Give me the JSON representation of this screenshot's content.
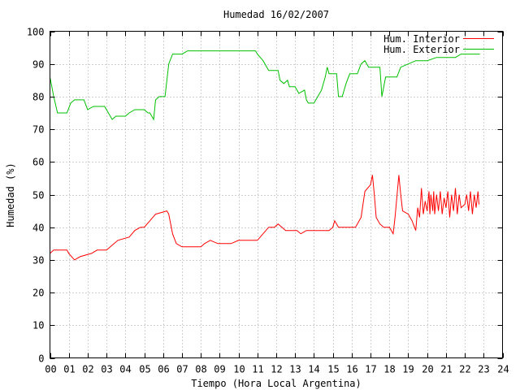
{
  "chart_data": {
    "type": "line",
    "title": "Humedad 16/02/2007",
    "xlabel": "Tiempo (Hora Local Argentina)",
    "ylabel": "Humedad (%)",
    "xlim": [
      0,
      24
    ],
    "ylim": [
      0,
      100
    ],
    "x_ticks": [
      "00",
      "01",
      "02",
      "03",
      "04",
      "05",
      "06",
      "07",
      "08",
      "09",
      "10",
      "11",
      "12",
      "13",
      "14",
      "15",
      "16",
      "17",
      "18",
      "19",
      "20",
      "21",
      "22",
      "23",
      "24"
    ],
    "y_ticks": [
      0,
      10,
      20,
      30,
      40,
      50,
      60,
      70,
      80,
      90,
      100
    ],
    "grid": true,
    "legend_position": "top-right",
    "series": [
      {
        "name": "Hum. Interior",
        "color": "#ff0000",
        "points": [
          [
            0.0,
            32
          ],
          [
            0.2,
            33
          ],
          [
            0.9,
            33
          ],
          [
            1.0,
            32
          ],
          [
            1.3,
            30
          ],
          [
            1.6,
            31
          ],
          [
            2.2,
            32
          ],
          [
            2.5,
            33
          ],
          [
            3.0,
            33
          ],
          [
            3.2,
            34
          ],
          [
            3.4,
            35
          ],
          [
            3.6,
            36
          ],
          [
            4.2,
            37
          ],
          [
            4.5,
            39
          ],
          [
            4.8,
            40
          ],
          [
            5.0,
            40
          ],
          [
            5.3,
            42
          ],
          [
            5.6,
            44
          ],
          [
            5.9,
            44.5
          ],
          [
            6.2,
            45
          ],
          [
            6.3,
            44
          ],
          [
            6.5,
            38
          ],
          [
            6.7,
            35
          ],
          [
            7.0,
            34
          ],
          [
            8.0,
            34
          ],
          [
            8.2,
            35
          ],
          [
            8.5,
            36
          ],
          [
            8.9,
            35
          ],
          [
            9.2,
            35
          ],
          [
            9.6,
            35
          ],
          [
            10.0,
            36
          ],
          [
            10.4,
            36
          ],
          [
            11.0,
            36
          ],
          [
            11.3,
            38
          ],
          [
            11.6,
            40
          ],
          [
            11.9,
            40
          ],
          [
            12.1,
            41
          ],
          [
            12.3,
            40
          ],
          [
            12.5,
            39
          ],
          [
            13.1,
            39
          ],
          [
            13.3,
            38
          ],
          [
            13.6,
            39
          ],
          [
            14.5,
            39
          ],
          [
            14.8,
            39
          ],
          [
            15.0,
            40
          ],
          [
            15.1,
            42
          ],
          [
            15.3,
            40
          ],
          [
            15.8,
            40
          ],
          [
            16.2,
            40
          ],
          [
            16.3,
            41
          ],
          [
            16.5,
            43
          ],
          [
            16.7,
            51
          ],
          [
            17.0,
            53
          ],
          [
            17.1,
            56
          ],
          [
            17.2,
            50
          ],
          [
            17.3,
            43
          ],
          [
            17.5,
            41
          ],
          [
            17.7,
            40
          ],
          [
            18.0,
            40
          ],
          [
            18.2,
            38
          ],
          [
            18.3,
            43
          ],
          [
            18.5,
            56
          ],
          [
            18.6,
            50
          ],
          [
            18.7,
            45
          ],
          [
            19.0,
            44
          ],
          [
            19.2,
            42
          ],
          [
            19.4,
            39
          ],
          [
            19.5,
            46
          ],
          [
            19.6,
            43
          ],
          [
            19.7,
            52
          ],
          [
            19.8,
            44
          ],
          [
            19.9,
            48
          ],
          [
            20.0,
            45
          ],
          [
            20.1,
            51
          ],
          [
            20.15,
            44
          ],
          [
            20.2,
            50
          ],
          [
            20.3,
            45
          ],
          [
            20.35,
            51
          ],
          [
            20.4,
            44
          ],
          [
            20.5,
            50
          ],
          [
            20.6,
            45
          ],
          [
            20.7,
            51
          ],
          [
            20.8,
            44
          ],
          [
            20.9,
            49
          ],
          [
            21.0,
            46
          ],
          [
            21.1,
            51
          ],
          [
            21.2,
            43
          ],
          [
            21.3,
            50
          ],
          [
            21.4,
            45
          ],
          [
            21.5,
            52
          ],
          [
            21.6,
            44
          ],
          [
            21.7,
            50
          ],
          [
            21.8,
            46
          ],
          [
            22.0,
            47
          ],
          [
            22.1,
            50
          ],
          [
            22.2,
            45
          ],
          [
            22.3,
            51
          ],
          [
            22.4,
            44
          ],
          [
            22.5,
            50
          ],
          [
            22.6,
            46
          ],
          [
            22.7,
            51
          ],
          [
            22.75,
            47
          ]
        ]
      },
      {
        "name": "Hum. Exterior",
        "color": "#00c000",
        "points": [
          [
            0.0,
            86
          ],
          [
            0.2,
            80
          ],
          [
            0.4,
            75
          ],
          [
            0.9,
            75
          ],
          [
            1.1,
            78
          ],
          [
            1.3,
            79
          ],
          [
            1.8,
            79
          ],
          [
            2.0,
            76
          ],
          [
            2.3,
            77
          ],
          [
            2.9,
            77
          ],
          [
            3.1,
            75
          ],
          [
            3.3,
            73
          ],
          [
            3.5,
            74
          ],
          [
            4.0,
            74
          ],
          [
            4.2,
            75
          ],
          [
            4.5,
            76
          ],
          [
            5.0,
            76
          ],
          [
            5.2,
            75
          ],
          [
            5.3,
            75
          ],
          [
            5.5,
            73
          ],
          [
            5.6,
            79
          ],
          [
            5.8,
            80
          ],
          [
            6.1,
            80
          ],
          [
            6.3,
            90
          ],
          [
            6.5,
            93
          ],
          [
            7.0,
            93
          ],
          [
            7.3,
            94
          ],
          [
            10.9,
            94
          ],
          [
            11.0,
            93
          ],
          [
            11.3,
            91
          ],
          [
            11.6,
            88
          ],
          [
            12.1,
            88
          ],
          [
            12.2,
            85
          ],
          [
            12.4,
            84
          ],
          [
            12.6,
            85
          ],
          [
            12.7,
            83
          ],
          [
            13.0,
            83
          ],
          [
            13.2,
            81
          ],
          [
            13.5,
            82
          ],
          [
            13.6,
            79
          ],
          [
            13.7,
            78
          ],
          [
            14.0,
            78
          ],
          [
            14.2,
            80
          ],
          [
            14.4,
            82
          ],
          [
            14.6,
            86
          ],
          [
            14.7,
            89
          ],
          [
            14.8,
            87
          ],
          [
            15.2,
            87
          ],
          [
            15.3,
            80
          ],
          [
            15.5,
            80
          ],
          [
            15.7,
            84
          ],
          [
            15.9,
            87
          ],
          [
            16.3,
            87
          ],
          [
            16.5,
            90
          ],
          [
            16.7,
            91
          ],
          [
            16.9,
            89
          ],
          [
            17.5,
            89
          ],
          [
            17.6,
            80
          ],
          [
            17.8,
            86
          ],
          [
            18.4,
            86
          ],
          [
            18.6,
            89
          ],
          [
            19.0,
            90
          ],
          [
            19.4,
            91
          ],
          [
            20.0,
            91
          ],
          [
            20.5,
            92
          ],
          [
            21.5,
            92
          ],
          [
            21.8,
            93
          ],
          [
            22.5,
            93
          ],
          [
            22.8,
            93
          ]
        ]
      }
    ]
  }
}
